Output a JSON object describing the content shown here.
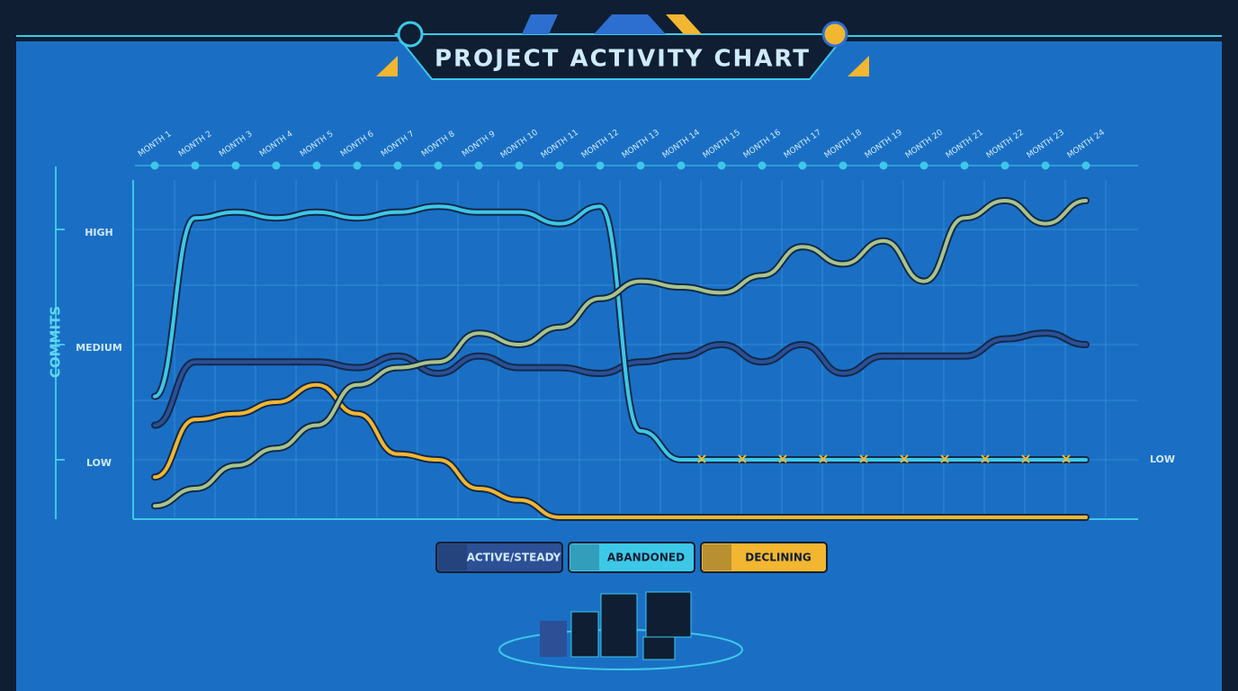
{
  "chart_data": {
    "type": "line",
    "title": "PROJECT ACTIVITY CHART",
    "ylabel": "COMMITS",
    "categories": [
      "MONTH 1",
      "MONTH 2",
      "MONTH 3",
      "MONTH 4",
      "MONTH 5",
      "MONTH 6",
      "MONTH 7",
      "MONTH 8",
      "MONTH 9",
      "MONTH 10",
      "MONTH 11",
      "MONTH 12",
      "MONTH 13",
      "MONTH 14",
      "MONTH 15",
      "MONTH 16",
      "MONTH 17",
      "MONTH 18",
      "MONTH 19",
      "MONTH 20",
      "MONTH 21",
      "MONTH 22",
      "MONTH 23",
      "MONTH 24"
    ],
    "series": [
      {
        "name": "ACTIVE/STEADY",
        "color": "#2d4f95",
        "values": [
          1.6,
          2.7,
          2.7,
          2.7,
          2.7,
          2.6,
          2.8,
          2.5,
          2.8,
          2.6,
          2.6,
          2.5,
          2.7,
          2.8,
          3.0,
          2.7,
          3.0,
          2.5,
          2.8,
          2.8,
          2.8,
          3.1,
          3.2,
          3.0
        ]
      },
      {
        "name": "ABANDONED",
        "color": "#3ec8e8",
        "values": [
          2.1,
          5.2,
          5.3,
          5.2,
          5.3,
          5.2,
          5.3,
          5.4,
          5.3,
          5.3,
          5.1,
          5.4,
          1.5,
          1.0,
          1.0,
          1.0,
          1.0,
          1.0,
          1.0,
          1.0,
          1.0,
          1.0,
          1.0,
          1.0
        ]
      },
      {
        "name": "DECLINING",
        "color": "#f2b630",
        "values": [
          0.7,
          1.7,
          1.8,
          2.0,
          2.3,
          1.8,
          1.1,
          1.0,
          0.5,
          0.3,
          0,
          0,
          0,
          0,
          0,
          0,
          0,
          0,
          0,
          0,
          0,
          0,
          0,
          0
        ]
      },
      {
        "color": "#a9c48a",
        "values": [
          0.2,
          0.5,
          0.9,
          1.2,
          1.6,
          2.3,
          2.6,
          2.7,
          3.2,
          3.0,
          3.3,
          3.8,
          4.1,
          4.0,
          3.9,
          4.2,
          4.7,
          4.4,
          4.8,
          4.1,
          5.2,
          5.5,
          5.1,
          5.5
        ]
      }
    ],
    "ylim": [
      0,
      6
    ],
    "yticks": [
      {
        "value": 1,
        "label": "LOW"
      },
      {
        "value": 3,
        "label": "MEDIUM"
      },
      {
        "value": 5,
        "label": "HIGH"
      }
    ],
    "grid": true
  }
}
